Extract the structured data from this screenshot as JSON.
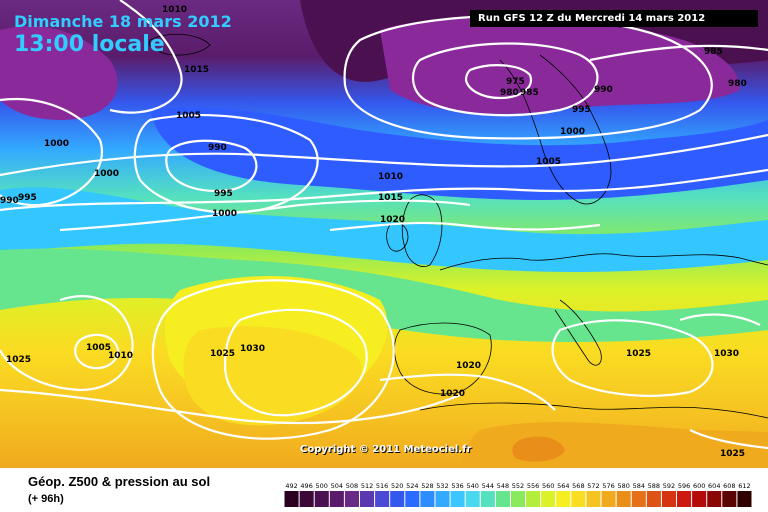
{
  "header": {
    "date": "Dimanche 18 mars 2012",
    "time": "13:00 locale",
    "run": "Run GFS 12 Z du Mercredi 14 mars 2012"
  },
  "copyright": "Copyright © 2011 Meteociel.fr",
  "footer": {
    "title": "Géop. Z500 & pression au sol",
    "subtitle": "(+ 96h)"
  },
  "legend": {
    "values": [
      "492",
      "496",
      "500",
      "504",
      "508",
      "512",
      "516",
      "520",
      "524",
      "528",
      "532",
      "536",
      "540",
      "544",
      "548",
      "552",
      "556",
      "560",
      "564",
      "568",
      "572",
      "576",
      "580",
      "584",
      "588",
      "592",
      "596",
      "600",
      "604",
      "608",
      "612"
    ],
    "colors": [
      "#2a0020",
      "#3c0838",
      "#4a1050",
      "#5a1c6a",
      "#682a86",
      "#5a38b0",
      "#4a4ad6",
      "#3458ee",
      "#2a6cff",
      "#2f8cff",
      "#33aaff",
      "#3cc6ff",
      "#4ad8ee",
      "#55e0c0",
      "#66e48e",
      "#88ea5c",
      "#b4ee3c",
      "#dcf228",
      "#f6ee20",
      "#fadc22",
      "#f6c422",
      "#f0aa1e",
      "#ea8e1a",
      "#e47018",
      "#de5214",
      "#d63410",
      "#cc1a10",
      "#b40a0a",
      "#8c0606",
      "#5a0404",
      "#300000"
    ]
  },
  "isobars": [
    {
      "label": "1010"
    },
    {
      "label": "1015"
    },
    {
      "label": "1005"
    },
    {
      "label": "1000"
    },
    {
      "label": "990"
    },
    {
      "label": "995"
    },
    {
      "label": "1000"
    },
    {
      "label": "990"
    },
    {
      "label": "1000"
    },
    {
      "label": "995"
    },
    {
      "label": "1010"
    },
    {
      "label": "1015"
    },
    {
      "label": "1020"
    },
    {
      "label": "975"
    },
    {
      "label": "980"
    },
    {
      "label": "985"
    },
    {
      "label": "990"
    },
    {
      "label": "995"
    },
    {
      "label": "1000"
    },
    {
      "label": "1005"
    },
    {
      "label": "985"
    },
    {
      "label": "980"
    },
    {
      "label": "1005"
    },
    {
      "label": "1010"
    },
    {
      "label": "1025"
    },
    {
      "label": "1025"
    },
    {
      "label": "1030"
    },
    {
      "label": "1020"
    },
    {
      "label": "1020"
    },
    {
      "label": "1025"
    },
    {
      "label": "1030"
    },
    {
      "label": "1025"
    }
  ]
}
